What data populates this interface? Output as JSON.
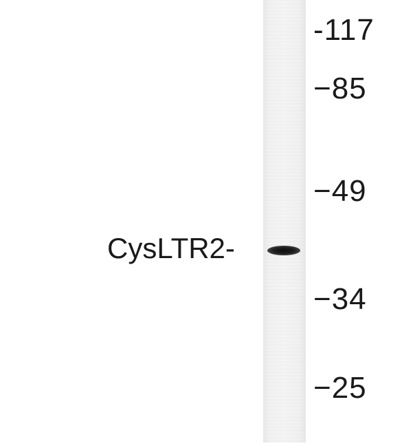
{
  "blot": {
    "band_label": "CysLTR2-",
    "markers": [
      "-117",
      "−85",
      "−49",
      "−34",
      "−25"
    ]
  }
}
